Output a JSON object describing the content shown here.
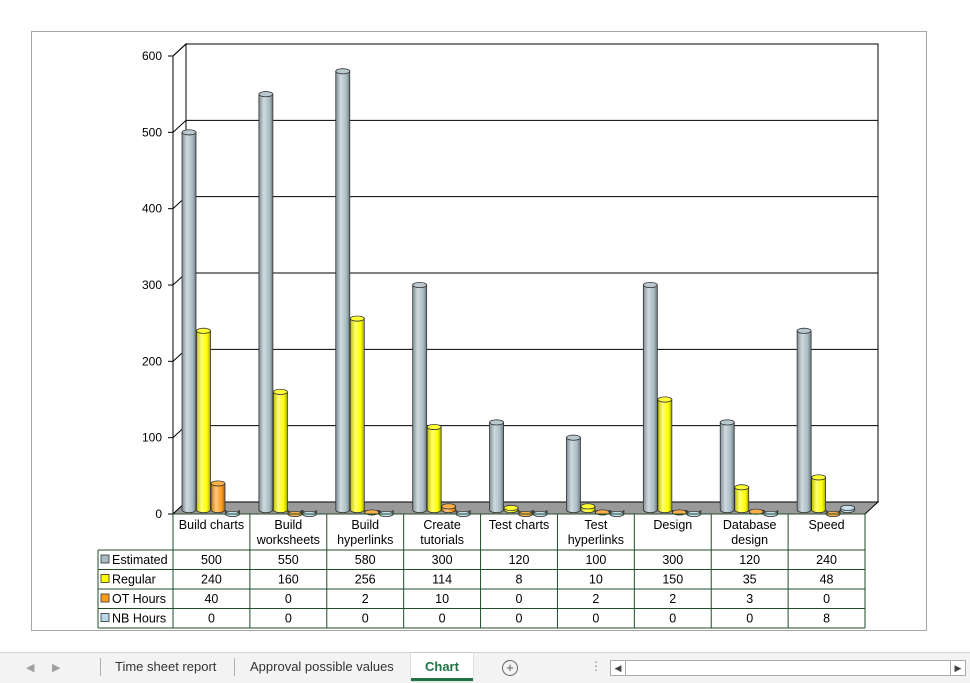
{
  "tabs": {
    "items": [
      {
        "label": "Time sheet report"
      },
      {
        "label": "Approval possible values"
      },
      {
        "label": "Chart"
      }
    ],
    "active": "Chart"
  },
  "colors": {
    "Estimated": "#a9bcc4",
    "Regular": "#ffff00",
    "OT Hours": "#ff9c1a",
    "NB Hours": "#b8d8ec",
    "accent": "#217346"
  },
  "chart_data": {
    "type": "bar",
    "variant": "3d-cylinder-clustered-with-data-table",
    "categories": [
      "Build charts",
      "Build worksheets",
      "Build hyperlinks",
      "Create tutorials",
      "Test charts",
      "Test hyperlinks",
      "Design",
      "Database design",
      "Speed"
    ],
    "category_lines": [
      [
        "Build charts"
      ],
      [
        "Build",
        "worksheets"
      ],
      [
        "Build",
        "hyperlinks"
      ],
      [
        "Create",
        "tutorials"
      ],
      [
        "Test charts"
      ],
      [
        "Test",
        "hyperlinks"
      ],
      [
        "Design"
      ],
      [
        "Database",
        "design"
      ],
      [
        "Speed"
      ]
    ],
    "series": [
      {
        "name": "Estimated",
        "values": [
          500,
          550,
          580,
          300,
          120,
          100,
          300,
          120,
          240
        ]
      },
      {
        "name": "Regular",
        "values": [
          240,
          160,
          256,
          114,
          8,
          10,
          150,
          35,
          48
        ]
      },
      {
        "name": "OT Hours",
        "values": [
          40,
          0,
          2,
          10,
          0,
          2,
          2,
          3,
          0
        ]
      },
      {
        "name": "NB Hours",
        "values": [
          0,
          0,
          0,
          0,
          0,
          0,
          0,
          0,
          8
        ]
      }
    ],
    "yticks": [
      0,
      100,
      200,
      300,
      400,
      500,
      600
    ],
    "ylim": [
      0,
      600
    ],
    "grid": true,
    "legend": "data-table-keys"
  }
}
